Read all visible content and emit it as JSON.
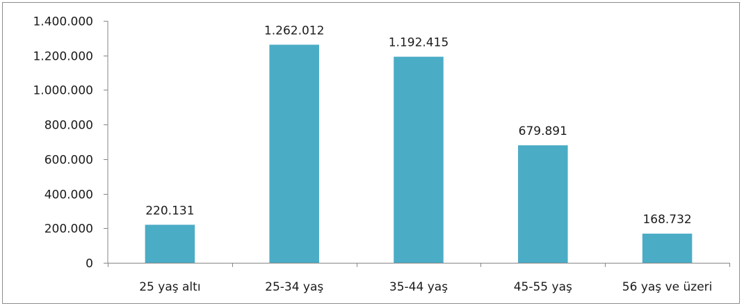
{
  "chart_data": {
    "type": "bar",
    "title": "",
    "xlabel": "",
    "ylabel": "",
    "categories": [
      "25 yaş altı",
      "25-34 yaş",
      "35-44 yaş",
      "45-55 yaş",
      "56 yaş ve üzeri"
    ],
    "values": [
      220131,
      1262012,
      1192415,
      679891,
      168732
    ],
    "data_labels": [
      "220.131",
      "1.262.012",
      "1.192.415",
      "679.891",
      "168.732"
    ],
    "ylim": [
      0,
      1400000
    ],
    "yticks": [
      0,
      200000,
      400000,
      600000,
      800000,
      1000000,
      1200000,
      1400000
    ],
    "ytick_labels": [
      "0",
      "200.000",
      "400.000",
      "600.000",
      "800.000",
      "1.000.000",
      "1.200.000",
      "1.400.000"
    ],
    "grid": false,
    "legend": "none",
    "colors": {
      "bar": "#4BACC6",
      "axis": "#868686",
      "text": "#1a1a1a"
    }
  }
}
